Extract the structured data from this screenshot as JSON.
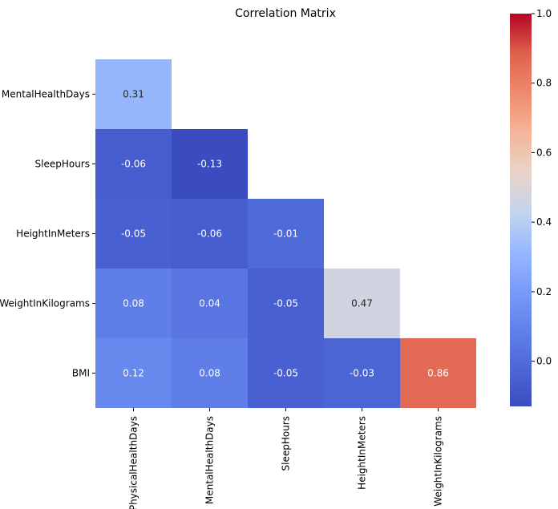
{
  "chart_data": {
    "type": "heatmap",
    "title": "Correlation Matrix",
    "row_labels": [
      "MentalHealthDays",
      "SleepHours",
      "HeightInMeters",
      "WeightInKilograms",
      "BMI"
    ],
    "col_labels": [
      "PhysicalHealthDays",
      "MentalHealthDays",
      "SleepHours",
      "HeightInMeters",
      "WeightInKilograms"
    ],
    "values": [
      [
        0.31,
        null,
        null,
        null,
        null
      ],
      [
        -0.06,
        -0.13,
        null,
        null,
        null
      ],
      [
        -0.05,
        -0.06,
        -0.01,
        null,
        null
      ],
      [
        0.08,
        0.04,
        -0.05,
        0.47,
        null
      ],
      [
        0.12,
        0.08,
        -0.05,
        -0.03,
        0.86
      ]
    ],
    "value_labels": [
      [
        "0.31",
        null,
        null,
        null,
        null
      ],
      [
        "-0.06",
        "-0.13",
        null,
        null,
        null
      ],
      [
        "-0.05",
        "-0.06",
        "-0.01",
        null,
        null
      ],
      [
        "0.08",
        "0.04",
        "-0.05",
        "0.47",
        null
      ],
      [
        "0.12",
        "0.08",
        "-0.05",
        "-0.03",
        "0.86"
      ]
    ],
    "colormap": "coolwarm",
    "vmin": -0.13,
    "vmax": 1.0,
    "colorbar": {
      "ticks": [
        0.0,
        0.2,
        0.4,
        0.6,
        0.8,
        1.0
      ],
      "tick_labels": [
        "0.0",
        "0.2",
        "0.4",
        "0.6",
        "0.8",
        "1.0"
      ]
    },
    "mask": "upper-triangle",
    "legend": "right"
  }
}
